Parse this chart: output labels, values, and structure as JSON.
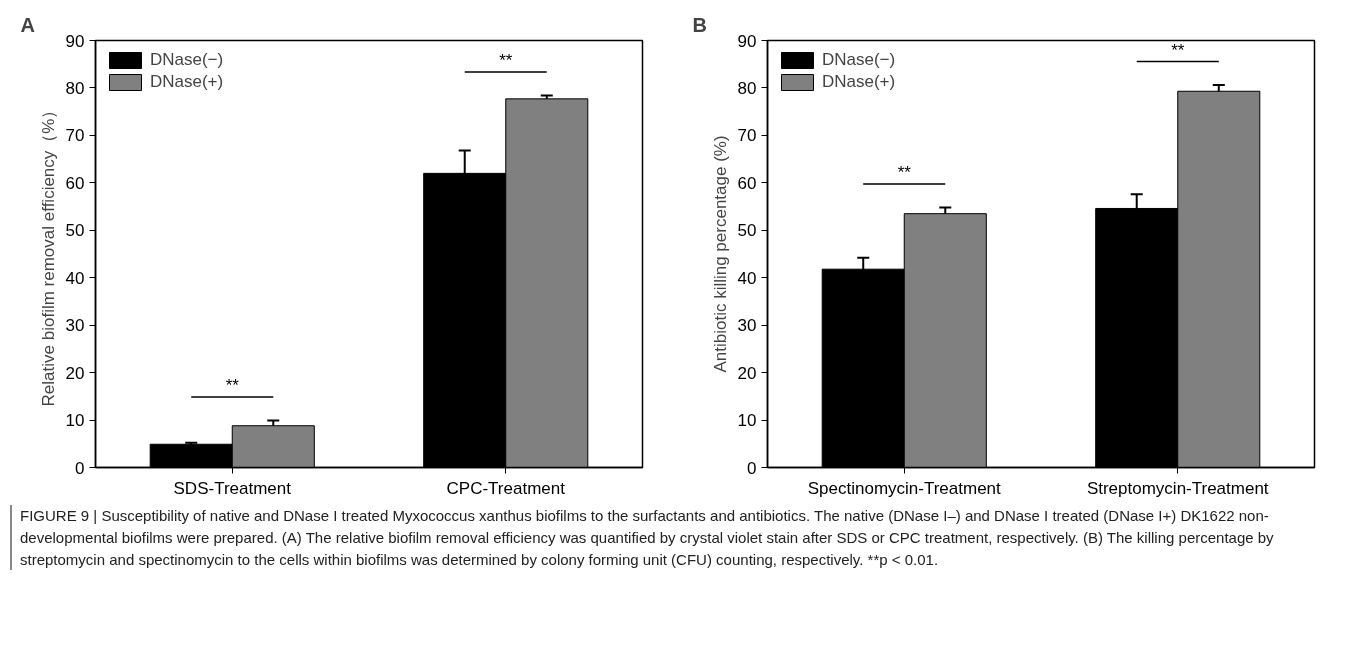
{
  "chart_data": [
    {
      "type": "bar",
      "title": "A",
      "ylabel": "Relative biofilm removal efficiency（%）",
      "categories": [
        "SDS-Treatment",
        "CPC-Treatment"
      ],
      "series": [
        {
          "name": "DNase(−)",
          "color": "#000000",
          "values": [
            4.9,
            62.0
          ],
          "errors": [
            0.3,
            4.8
          ]
        },
        {
          "name": "DNase(+)",
          "color": "#808080",
          "values": [
            8.8,
            77.7
          ],
          "errors": [
            1.1,
            0.7
          ]
        }
      ],
      "ylim": [
        0,
        90
      ],
      "yticks": [
        0,
        10,
        20,
        30,
        40,
        50,
        60,
        70,
        80,
        90
      ],
      "legend": "top left",
      "annotations": [
        "**",
        "**"
      ]
    },
    {
      "type": "bar",
      "title": "B",
      "ylabel": "Antibiotic killing percentage (%)",
      "categories": [
        "Spectinomycin-Treatment",
        "Streptomycin-Treatment"
      ],
      "series": [
        {
          "name": "DNase(−)",
          "color": "#000000",
          "values": [
            41.8,
            54.6
          ],
          "errors": [
            2.4,
            3.0
          ]
        },
        {
          "name": "DNase(+)",
          "color": "#808080",
          "values": [
            53.5,
            79.3
          ],
          "errors": [
            1.3,
            1.3
          ]
        }
      ],
      "ylim": [
        0,
        90
      ],
      "yticks": [
        0,
        10,
        20,
        30,
        40,
        50,
        60,
        70,
        80,
        90
      ],
      "legend": "top left",
      "annotations": [
        "**",
        "**",
        "FIGURE 9 | Susceptibility of native and DNase I treated Myxococcus xanthus biofilms to the surfactants and antibiotics. The native (DNase I–) and DNase I treated (DNase I+) DK1622 non-developmental biofilms were prepared. (A) The relative biofilm removal efficiency was quantified by crystal violet stain after SDS or CPC treatment, respectively. (B) The killing percentage by streptomycin and spectinomycin to the cells within biofilms was determined by colony forming unit (CFU) counting, respectively. **p < 0.01."
      ]
    }
  ]
}
